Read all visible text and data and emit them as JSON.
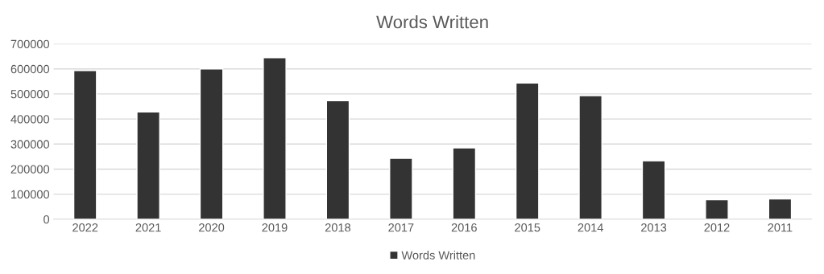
{
  "chart_data": {
    "type": "bar",
    "title": "Words Written",
    "categories": [
      "2022",
      "2021",
      "2020",
      "2019",
      "2018",
      "2017",
      "2016",
      "2015",
      "2014",
      "2013",
      "2012",
      "2011"
    ],
    "series": [
      {
        "name": "Words Written",
        "color": "#333333",
        "values": [
          593000,
          428000,
          600000,
          645000,
          473000,
          243000,
          285000,
          544000,
          493000,
          233000,
          78000,
          81000
        ]
      }
    ],
    "ylim": [
      0,
      700000
    ],
    "yticks": [
      0,
      100000,
      200000,
      300000,
      400000,
      500000,
      600000,
      700000
    ],
    "grid": "y",
    "legend": "bottom"
  }
}
